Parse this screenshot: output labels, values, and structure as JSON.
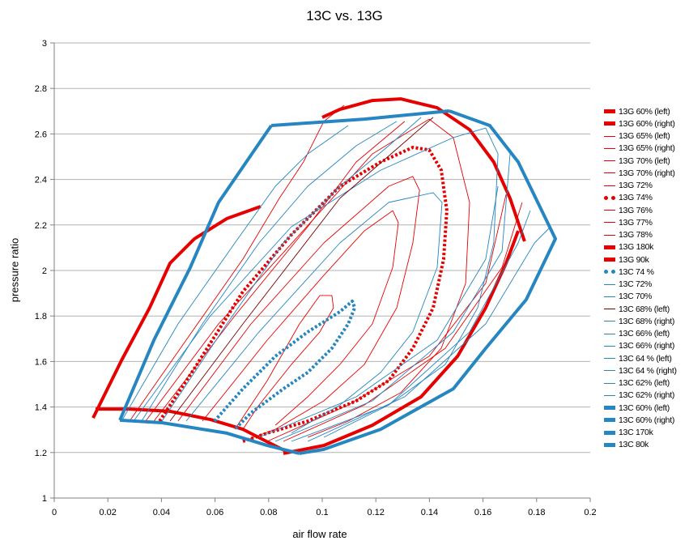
{
  "chart_data": {
    "type": "line",
    "title": "13C vs. 13G",
    "xlabel": "air flow rate",
    "ylabel": "pressure ratio",
    "xlim": [
      0,
      0.2
    ],
    "ylim": [
      1,
      3
    ],
    "xticks": [
      "0",
      "0.02",
      "0.04",
      "0.06",
      "0.08",
      "0.1",
      "0.12",
      "0.14",
      "0.16",
      "0.18",
      "0.2"
    ],
    "yticks": [
      "1",
      "1.2",
      "1.4",
      "1.6",
      "1.8",
      "2",
      "2.2",
      "2.4",
      "2.6",
      "2.8",
      "3"
    ],
    "grid": "horizontal",
    "legend_position": "right",
    "colors": {
      "red": "#e60000",
      "blue": "#2586c1",
      "darkred": "#7b0000",
      "grid": "#b3b3b3"
    },
    "series": [
      {
        "name": "13G 60% (left)",
        "color": "red",
        "style": "thick",
        "points": [
          [
            0.0145,
            1.352
          ],
          [
            0.0251,
            1.605
          ],
          [
            0.0356,
            1.836
          ],
          [
            0.0432,
            2.032
          ],
          [
            0.0523,
            2.139
          ],
          [
            0.0644,
            2.228
          ],
          [
            0.077,
            2.281
          ]
        ]
      },
      {
        "name": "13G 60% (right)",
        "color": "red",
        "style": "thick",
        "points": [
          [
            0.1731,
            2.174
          ],
          [
            0.1686,
            2.032
          ],
          [
            0.161,
            1.836
          ],
          [
            0.1505,
            1.623
          ],
          [
            0.1369,
            1.445
          ],
          [
            0.1187,
            1.32
          ],
          [
            0.1006,
            1.231
          ],
          [
            0.0855,
            1.196
          ]
        ]
      },
      {
        "name": "13G 65% (left)",
        "color": "red",
        "style": "thin",
        "points": [
          [
            0.0281,
            1.338
          ],
          [
            0.0492,
            1.694
          ],
          [
            0.0704,
            2.05
          ],
          [
            0.084,
            2.317
          ],
          [
            0.093,
            2.477
          ],
          [
            0.1006,
            2.655
          ],
          [
            0.1082,
            2.726
          ]
        ]
      },
      {
        "name": "13G 65% (right)",
        "color": "red",
        "style": "thin",
        "points": [
          [
            0.0855,
            1.249
          ],
          [
            0.1157,
            1.409
          ],
          [
            0.1459,
            1.658
          ],
          [
            0.1671,
            2.014
          ],
          [
            0.1746,
            2.299
          ]
        ]
      },
      {
        "name": "13G 70% (left)",
        "color": "red",
        "style": "thin",
        "points": [
          [
            0.0372,
            1.338
          ],
          [
            0.0674,
            1.801
          ],
          [
            0.0946,
            2.192
          ],
          [
            0.1127,
            2.477
          ],
          [
            0.1308,
            2.655
          ]
        ]
      },
      {
        "name": "13G 70% (right)",
        "color": "red",
        "style": "thin",
        "points": [
          [
            0.0795,
            1.249
          ],
          [
            0.1097,
            1.409
          ],
          [
            0.1399,
            1.623
          ],
          [
            0.161,
            1.943
          ],
          [
            0.1686,
            2.335
          ]
        ]
      },
      {
        "name": "13G 72%",
        "color": "red",
        "style": "thin",
        "points": [
          [
            0.0341,
            1.338
          ],
          [
            0.0613,
            1.765
          ],
          [
            0.0915,
            2.157
          ],
          [
            0.1187,
            2.512
          ],
          [
            0.1399,
            2.665
          ],
          [
            0.1489,
            2.584
          ],
          [
            0.155,
            2.299
          ],
          [
            0.1535,
            1.943
          ],
          [
            0.1444,
            1.658
          ],
          [
            0.1293,
            1.463
          ],
          [
            0.1097,
            1.338
          ],
          [
            0.0946,
            1.267
          ]
        ]
      },
      {
        "name": "13G 74%",
        "color": "red",
        "style": "dot",
        "points": [
          [
            0.0393,
            1.338
          ],
          [
            0.0523,
            1.569
          ],
          [
            0.0704,
            1.907
          ],
          [
            0.0885,
            2.157
          ],
          [
            0.1066,
            2.37
          ],
          [
            0.1218,
            2.477
          ],
          [
            0.1338,
            2.541
          ],
          [
            0.1399,
            2.53
          ],
          [
            0.1444,
            2.441
          ],
          [
            0.1465,
            2.263
          ],
          [
            0.1453,
            2.05
          ],
          [
            0.1414,
            1.836
          ],
          [
            0.1338,
            1.658
          ],
          [
            0.1248,
            1.516
          ],
          [
            0.1127,
            1.427
          ],
          [
            0.0946,
            1.338
          ],
          [
            0.0795,
            1.285
          ],
          [
            0.0704,
            1.249
          ]
        ]
      },
      {
        "name": "13G 76%",
        "color": "red",
        "style": "thin",
        "points": [
          [
            0.0462,
            1.338
          ],
          [
            0.0734,
            1.765
          ],
          [
            0.1006,
            2.121
          ],
          [
            0.1248,
            2.37
          ],
          [
            0.1338,
            2.413
          ],
          [
            0.1363,
            2.352
          ],
          [
            0.1338,
            2.121
          ],
          [
            0.1278,
            1.836
          ],
          [
            0.1157,
            1.587
          ],
          [
            0.1006,
            1.427
          ],
          [
            0.0825,
            1.302
          ],
          [
            0.0704,
            1.249
          ]
        ]
      },
      {
        "name": "13G 77%",
        "color": "red",
        "style": "thin",
        "points": [
          [
            0.0553,
            1.338
          ],
          [
            0.0795,
            1.694
          ],
          [
            0.1006,
            1.979
          ],
          [
            0.1157,
            2.174
          ],
          [
            0.1263,
            2.263
          ],
          [
            0.1284,
            2.21
          ],
          [
            0.1263,
            2.014
          ],
          [
            0.1187,
            1.765
          ],
          [
            0.1066,
            1.587
          ],
          [
            0.0946,
            1.445
          ],
          [
            0.0825,
            1.32
          ]
        ]
      },
      {
        "name": "13G 78%",
        "color": "red",
        "style": "thin",
        "points": [
          [
            0.0674,
            1.302
          ],
          [
            0.0795,
            1.516
          ],
          [
            0.0915,
            1.765
          ],
          [
            0.0991,
            1.89
          ],
          [
            0.1036,
            1.89
          ],
          [
            0.1042,
            1.836
          ],
          [
            0.0991,
            1.73
          ],
          [
            0.0885,
            1.587
          ],
          [
            0.0764,
            1.409
          ],
          [
            0.0704,
            1.302
          ]
        ]
      },
      {
        "name": "13G 180k",
        "color": "red",
        "style": "thick",
        "points": [
          [
            0.1,
            2.673
          ],
          [
            0.1066,
            2.708
          ],
          [
            0.1187,
            2.747
          ],
          [
            0.1293,
            2.754
          ],
          [
            0.1429,
            2.715
          ],
          [
            0.155,
            2.619
          ],
          [
            0.164,
            2.477
          ],
          [
            0.1701,
            2.317
          ],
          [
            0.1755,
            2.128
          ]
        ]
      },
      {
        "name": "13G 90k",
        "color": "red",
        "style": "thick",
        "points": [
          [
            0.0154,
            1.391
          ],
          [
            0.0281,
            1.391
          ],
          [
            0.0432,
            1.381
          ],
          [
            0.0583,
            1.345
          ],
          [
            0.0704,
            1.302
          ],
          [
            0.081,
            1.238
          ],
          [
            0.087,
            1.203
          ]
        ]
      },
      {
        "name": "13C 74 %",
        "color": "blue",
        "style": "dot",
        "points": [
          [
            0.0598,
            1.338
          ],
          [
            0.0704,
            1.48
          ],
          [
            0.0825,
            1.623
          ],
          [
            0.0946,
            1.73
          ],
          [
            0.1066,
            1.819
          ],
          [
            0.1112,
            1.865
          ],
          [
            0.1121,
            1.836
          ],
          [
            0.1097,
            1.765
          ],
          [
            0.1036,
            1.658
          ],
          [
            0.0946,
            1.552
          ],
          [
            0.0855,
            1.48
          ],
          [
            0.0734,
            1.374
          ],
          [
            0.0674,
            1.302
          ]
        ]
      },
      {
        "name": "13C 72%",
        "color": "blue",
        "style": "thin",
        "points": [
          [
            0.0492,
            1.338
          ],
          [
            0.0764,
            1.73
          ],
          [
            0.1066,
            2.121
          ],
          [
            0.1248,
            2.299
          ],
          [
            0.1414,
            2.342
          ],
          [
            0.1447,
            2.299
          ],
          [
            0.1429,
            2.014
          ],
          [
            0.1338,
            1.73
          ],
          [
            0.1218,
            1.552
          ],
          [
            0.1066,
            1.409
          ],
          [
            0.0885,
            1.285
          ]
        ]
      },
      {
        "name": "13C 70%",
        "color": "blue",
        "style": "thin",
        "points": [
          [
            0.0296,
            1.338
          ],
          [
            0.0583,
            1.801
          ],
          [
            0.0885,
            2.192
          ],
          [
            0.1218,
            2.441
          ],
          [
            0.1489,
            2.584
          ],
          [
            0.161,
            2.626
          ],
          [
            0.1656,
            2.512
          ],
          [
            0.164,
            2.121
          ],
          [
            0.158,
            1.836
          ],
          [
            0.1459,
            1.587
          ],
          [
            0.1248,
            1.409
          ],
          [
            0.1006,
            1.267
          ]
        ]
      },
      {
        "name": "13C 68% (left)",
        "color": "darkred",
        "style": "thin",
        "points": [
          [
            0.0432,
            1.338
          ],
          [
            0.0704,
            1.765
          ],
          [
            0.1066,
            2.317
          ],
          [
            0.1414,
            2.673
          ]
        ]
      },
      {
        "name": "13C 68% (right)",
        "color": "blue",
        "style": "thin",
        "points": [
          [
            0.0764,
            1.267
          ],
          [
            0.1127,
            1.445
          ],
          [
            0.1429,
            1.694
          ],
          [
            0.161,
            2.05
          ],
          [
            0.1656,
            2.37
          ]
        ]
      },
      {
        "name": "13C 66% (left)",
        "color": "blue",
        "style": "thin",
        "points": [
          [
            0.0402,
            1.338
          ],
          [
            0.0644,
            1.765
          ],
          [
            0.0855,
            2.121
          ],
          [
            0.1066,
            2.37
          ],
          [
            0.1248,
            2.548
          ],
          [
            0.1369,
            2.673
          ]
        ]
      },
      {
        "name": "13C 66% (right)",
        "color": "blue",
        "style": "thin",
        "points": [
          [
            0.0825,
            1.249
          ],
          [
            0.1187,
            1.427
          ],
          [
            0.1489,
            1.73
          ],
          [
            0.1671,
            2.085
          ],
          [
            0.1701,
            2.512
          ]
        ]
      },
      {
        "name": "13C 64 % (left)",
        "color": "blue",
        "style": "thin",
        "points": [
          [
            0.0326,
            1.338
          ],
          [
            0.0553,
            1.765
          ],
          [
            0.0764,
            2.121
          ],
          [
            0.0946,
            2.37
          ],
          [
            0.1127,
            2.548
          ],
          [
            0.1278,
            2.655
          ]
        ]
      },
      {
        "name": "13C 64 % (right)",
        "color": "blue",
        "style": "thin",
        "points": [
          [
            0.0885,
            1.249
          ],
          [
            0.1248,
            1.409
          ],
          [
            0.155,
            1.73
          ],
          [
            0.1731,
            2.121
          ],
          [
            0.1776,
            2.263
          ]
        ]
      },
      {
        "name": "13C 62% (left)",
        "color": "blue",
        "style": "thin",
        "points": [
          [
            0.0251,
            1.338
          ],
          [
            0.0462,
            1.765
          ],
          [
            0.0674,
            2.121
          ],
          [
            0.0825,
            2.37
          ],
          [
            0.0946,
            2.512
          ],
          [
            0.1097,
            2.637
          ]
        ]
      },
      {
        "name": "13C 62% (right)",
        "color": "blue",
        "style": "thin",
        "points": [
          [
            0.0946,
            1.249
          ],
          [
            0.1308,
            1.445
          ],
          [
            0.161,
            1.765
          ],
          [
            0.1792,
            2.121
          ],
          [
            0.1852,
            2.192
          ]
        ]
      },
      {
        "name": "13C 60% (left)",
        "color": "blue",
        "style": "thick",
        "points": [
          [
            0.0245,
            1.342
          ],
          [
            0.0372,
            1.694
          ],
          [
            0.0508,
            2.014
          ],
          [
            0.0613,
            2.299
          ],
          [
            0.081,
            2.637
          ]
        ]
      },
      {
        "name": "13C 60% (right)",
        "color": "blue",
        "style": "thick",
        "points": [
          [
            0.1474,
            2.701
          ],
          [
            0.1625,
            2.637
          ],
          [
            0.1731,
            2.477
          ],
          [
            0.187,
            2.139
          ],
          [
            0.1761,
            1.872
          ],
          [
            0.161,
            1.658
          ],
          [
            0.1489,
            1.48
          ],
          [
            0.1218,
            1.302
          ],
          [
            0.1006,
            1.214
          ],
          [
            0.0915,
            1.196
          ]
        ]
      },
      {
        "name": "13C 170k",
        "color": "blue",
        "style": "thick",
        "points": [
          [
            0.081,
            2.637
          ],
          [
            0.1157,
            2.665
          ],
          [
            0.1474,
            2.701
          ]
        ]
      },
      {
        "name": "13C 80k",
        "color": "blue",
        "style": "thick",
        "points": [
          [
            0.0245,
            1.342
          ],
          [
            0.0402,
            1.331
          ],
          [
            0.0644,
            1.285
          ],
          [
            0.0795,
            1.231
          ],
          [
            0.0915,
            1.196
          ]
        ]
      }
    ]
  }
}
